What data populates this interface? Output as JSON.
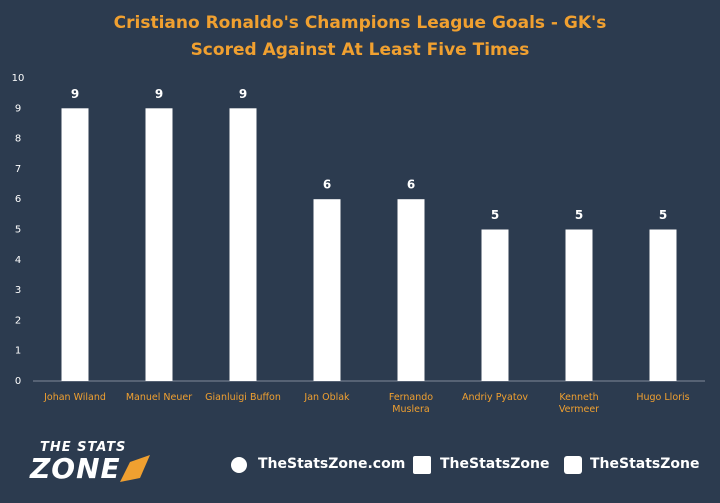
{
  "chart_data": {
    "type": "bar",
    "title": "Cristiano Ronaldo's Champions League Goals - GK's Scored Against At Least Five Times",
    "categories": [
      "Johan Wiland",
      "Manuel Neuer",
      "Gianluigi Buffon",
      "Jan Oblak",
      "Fernando\nMuslera",
      "Andriy Pyatov",
      "Kenneth\nVermeer",
      "Hugo Lloris"
    ],
    "values": [
      9,
      9,
      9,
      6,
      6,
      5,
      5,
      5
    ],
    "color": "#ffffff",
    "ylim": [
      0,
      10
    ],
    "yticks": [
      0,
      1,
      2,
      3,
      4,
      5,
      6,
      7,
      8,
      9,
      10
    ],
    "grid": false
  },
  "footer": {
    "logo_top": "THE STATS",
    "logo_bottom": "ZONE",
    "website": "TheStatsZone.com",
    "facebook": "TheStatsZone",
    "twitter": "TheStatsZone"
  }
}
